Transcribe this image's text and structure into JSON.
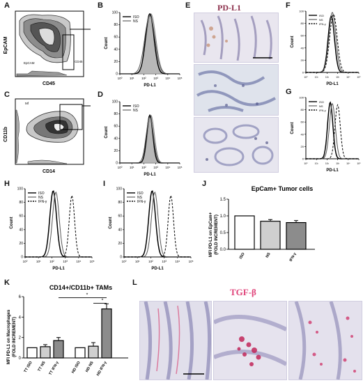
{
  "panels": {
    "A": {
      "letter": "A",
      "ylabel": "EpCAM",
      "xlabel": "CD45",
      "gate_label": "EpCAM",
      "gate2_label": "CD45"
    },
    "B": {
      "letter": "B",
      "ylabel": "Count",
      "xlabel": "PD-L1",
      "legend": [
        "ISO",
        "NS"
      ]
    },
    "C": {
      "letter": "C",
      "ylabel": "CD11b",
      "xlabel": "CD14",
      "gate_label": "Mf"
    },
    "D": {
      "letter": "D",
      "ylabel": "Count",
      "xlabel": "PD-L1",
      "legend": [
        "ISO",
        "NS"
      ]
    },
    "E": {
      "letter": "E",
      "title": "PD-L1"
    },
    "F": {
      "letter": "F",
      "ylabel": "Count",
      "xlabel": "PD-L1",
      "legend": [
        "ISO",
        "NS",
        "IFN-γ"
      ]
    },
    "G": {
      "letter": "G",
      "ylabel": "Count",
      "xlabel": "PD-L1",
      "legend": [
        "ISO",
        "NS",
        "IFN-γ"
      ]
    },
    "H": {
      "letter": "H",
      "ylabel": "Count",
      "xlabel": "PD-L1",
      "legend": [
        "ISO",
        "NS",
        "IFN-γ"
      ]
    },
    "I": {
      "letter": "I",
      "ylabel": "Count",
      "xlabel": "PD-L1",
      "legend": [
        "ISO",
        "NS",
        "IFN-γ"
      ]
    },
    "J": {
      "letter": "J"
    },
    "K": {
      "letter": "K"
    },
    "L": {
      "letter": "L",
      "title": "TGF-β"
    }
  },
  "hist_yticks": [
    "0",
    "20",
    "40",
    "60",
    "80",
    "100"
  ],
  "hist_xticks": [
    "10⁰",
    "10¹",
    "10²",
    "10³",
    "10⁴",
    "10⁵"
  ],
  "colors": {
    "iso": "#000000",
    "ns": "#8a8a8a",
    "ns_fill": "#b8b8b8",
    "pdl1_title": "#8b2e4a",
    "tgfb_title": "#e0457b",
    "bar_white": "#ffffff",
    "bar_lgray": "#cfcfcf",
    "bar_dgray": "#8c8c8c"
  },
  "chart_data": [
    {
      "type": "bar",
      "title": "EpCam+ Tumor cells",
      "ylabel": "MFI PD-L1 on EpCam+\n(FOLD INCREMENT)",
      "categories": [
        "ISO",
        "NS",
        "IFN-γ"
      ],
      "values": [
        1.0,
        0.84,
        0.8
      ],
      "errors": [
        0,
        0.05,
        0.06
      ],
      "ylim": [
        0,
        1.5
      ],
      "yticks": [
        "0.0",
        "0.5",
        "1.0",
        "1.5"
      ]
    },
    {
      "type": "bar",
      "title": "CD14+/CD11b+ TAMs",
      "ylabel": "MFI PD-L1 on Macrophages\n(FOLD INCREMENT)",
      "categories": [
        "TT ISO",
        "TT NS",
        "TT IFN-γ",
        "HD ISO",
        "HD NS",
        "HD IFN-γ"
      ],
      "values": [
        1.0,
        1.1,
        1.7,
        1.0,
        1.15,
        4.8
      ],
      "errors": [
        0,
        0.2,
        0.3,
        0,
        0.35,
        0.5
      ],
      "ylim": [
        0,
        6
      ],
      "yticks": [
        "0",
        "2",
        "4",
        "6"
      ],
      "annotations": [
        "*",
        "*"
      ]
    }
  ]
}
